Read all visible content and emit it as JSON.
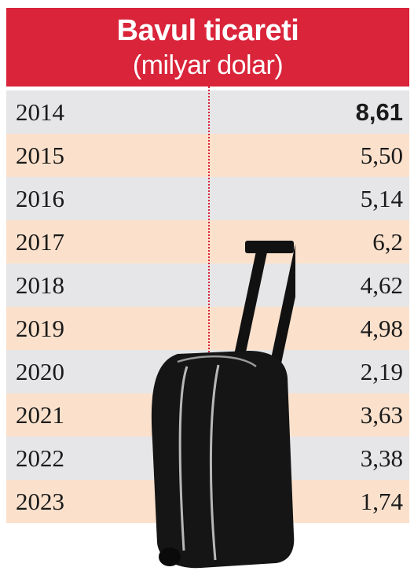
{
  "colors": {
    "header_bg": "#d9243a",
    "row_gray": "#e6e6e8",
    "row_peach": "#fbe1cc",
    "divider": "#d9243a",
    "text": "#1a1a1a"
  },
  "chart_data": {
    "type": "table",
    "title": "Bavul ticareti",
    "subtitle": "(milyar dolar)",
    "columns": [
      "",
      ""
    ],
    "categories": [
      "2014",
      "2015",
      "2016",
      "2017",
      "2018",
      "2019",
      "2020",
      "2021",
      "2022",
      "2023"
    ],
    "value_labels": [
      "8,61",
      "5,50",
      "5,14",
      "6,2",
      "4,62",
      "4,98",
      "2,19",
      "3,63",
      "3,38",
      "1,74"
    ],
    "values": [
      8.61,
      5.5,
      5.14,
      6.2,
      4.62,
      4.98,
      2.19,
      3.63,
      3.38,
      1.74
    ],
    "unit": "milyar dolar",
    "highlight_first": true
  },
  "illustration": {
    "icon": "suitcase-icon"
  }
}
